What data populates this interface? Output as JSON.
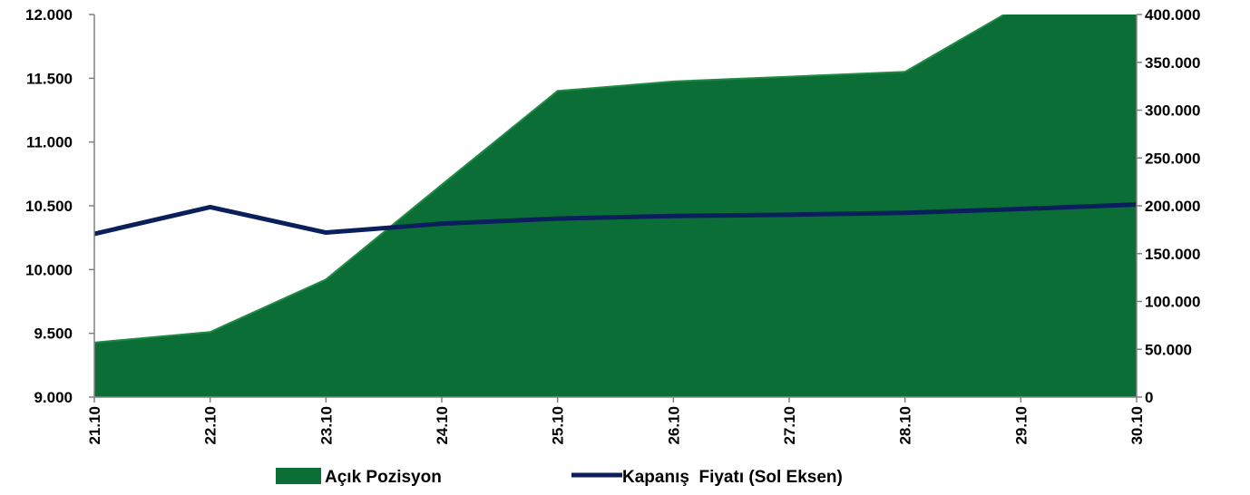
{
  "chart_data": {
    "type": "area",
    "categories": [
      "21.10",
      "22.10",
      "23.10",
      "24.10",
      "25.10",
      "26.10",
      "27.10",
      "28.10",
      "29.10",
      "30.10"
    ],
    "series": [
      {
        "name": "Açık Pozisyon",
        "type": "area",
        "axis": "right",
        "color": "#0a6e36",
        "values": [
          57000,
          68000,
          123000,
          222000,
          320000,
          330000,
          335000,
          340000,
          410000,
          410000
        ]
      },
      {
        "name": "Kapanış  Fiyatı (Sol Eksen)",
        "type": "line",
        "axis": "left",
        "color": "#0a1f5c",
        "values": [
          10280,
          10490,
          10290,
          10360,
          10400,
          10420,
          10430,
          10445,
          10475,
          10510
        ]
      }
    ],
    "y_left": {
      "lim": [
        9000,
        12000
      ],
      "ticks": [
        9000,
        9500,
        10000,
        10500,
        11000,
        11500,
        12000
      ],
      "tick_labels": [
        "9.000",
        "9.500",
        "10.000",
        "10.500",
        "11.000",
        "11.500",
        "12.000"
      ]
    },
    "y_right": {
      "lim": [
        0,
        400000
      ],
      "ticks": [
        0,
        50000,
        100000,
        150000,
        200000,
        250000,
        300000,
        350000,
        400000
      ],
      "tick_labels": [
        "0",
        "50.000",
        "100.000",
        "150.000",
        "200.000",
        "250.000",
        "300.000",
        "350.000",
        "400.000"
      ]
    },
    "grid": false,
    "legend": "bottom"
  }
}
